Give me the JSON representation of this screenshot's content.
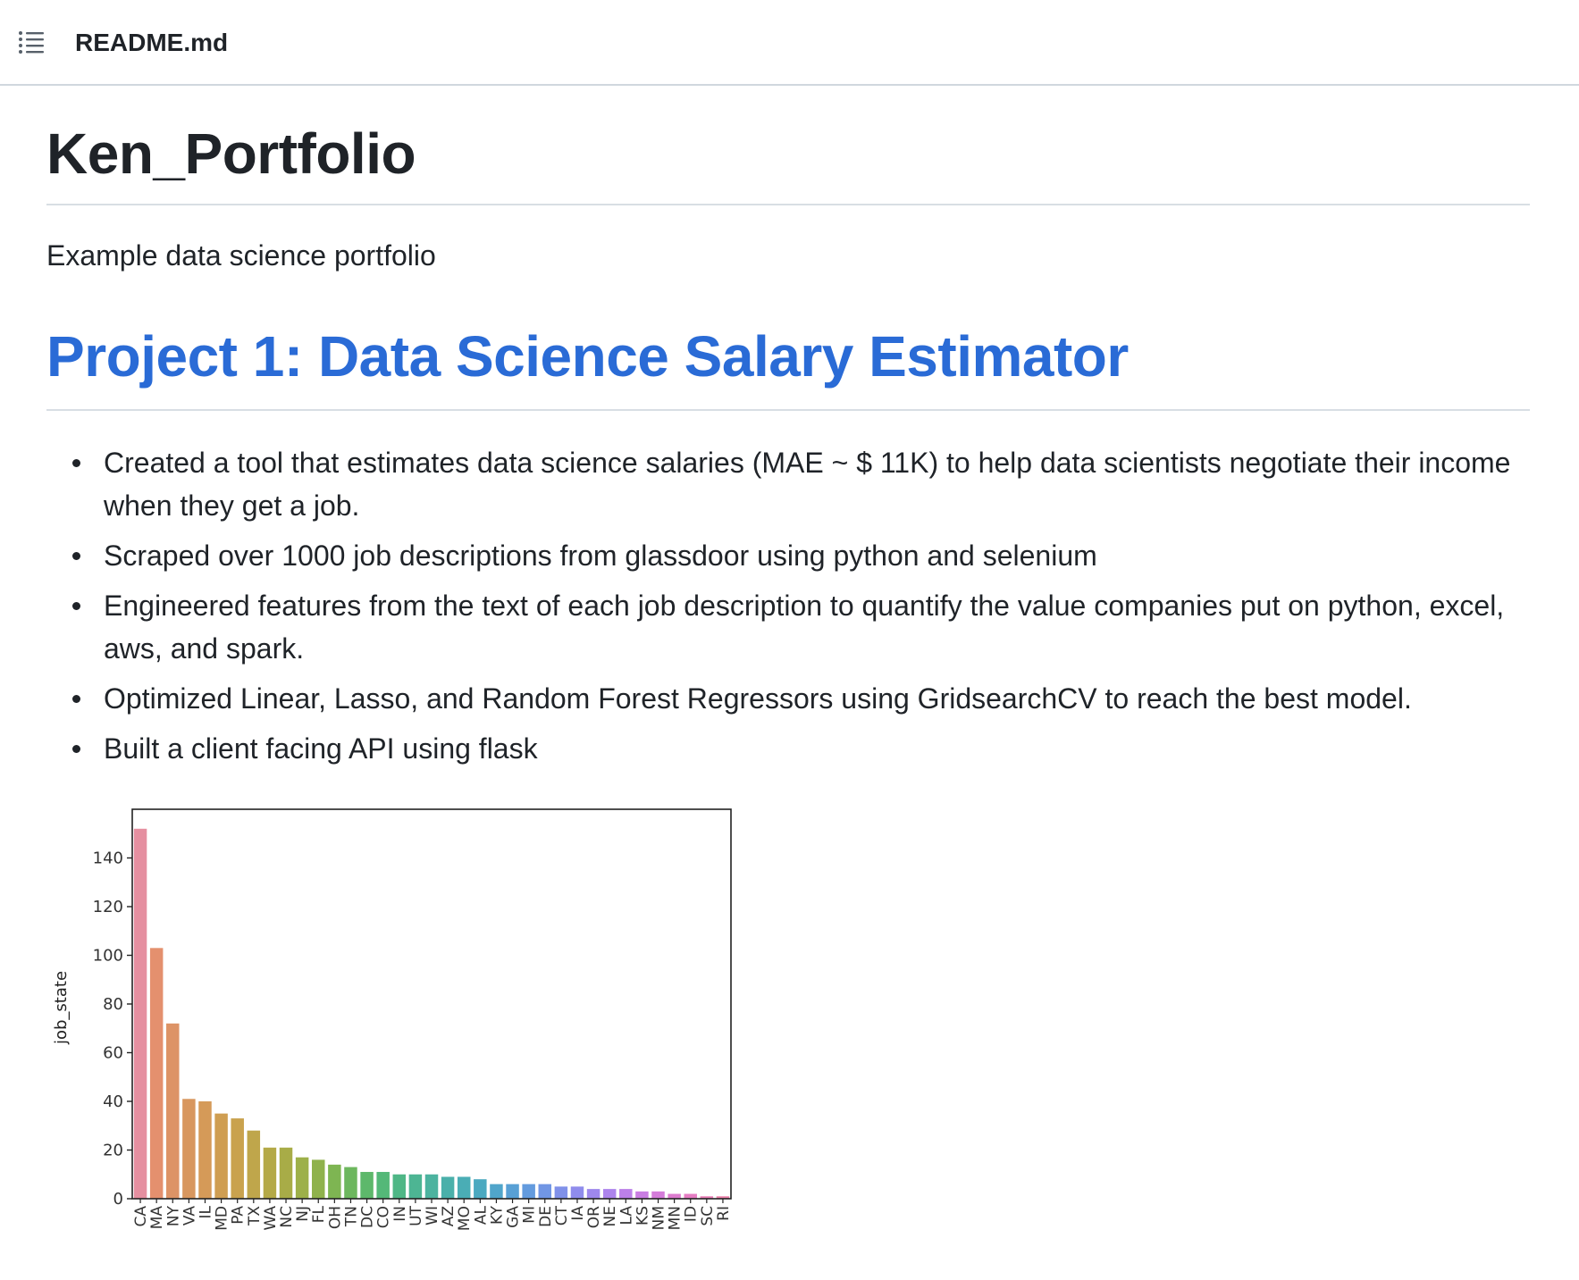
{
  "header": {
    "toc_icon": "list-icon",
    "file_name": "README.md"
  },
  "readme": {
    "title": "Ken_Portfolio",
    "intro": "Example data science portfolio",
    "project_title": "Project 1: Data Science Salary Estimator",
    "bullets": [
      "Created a tool that estimates data science salaries (MAE ~ $ 11K) to help data scientists negotiate their income when they get a job.",
      "Scraped over 1000 job descriptions from glassdoor using python and selenium",
      "Engineered features from the text of each job description to quantify the value companies put on python, excel, aws, and spark.",
      "Optimized Linear, Lasso, and Random Forest Regressors using GridsearchCV to reach the best model.",
      "Built a client facing API using flask"
    ]
  },
  "colors": {
    "link": "#2a6bd6",
    "text": "#1f2328",
    "divider": "#d8dee4"
  },
  "chart_data": {
    "type": "bar",
    "ylabel": "job_state",
    "xlabel": "",
    "ylim": [
      0,
      160
    ],
    "yticks": [
      0,
      20,
      40,
      60,
      80,
      100,
      120,
      140
    ],
    "categories": [
      "CA",
      "MA",
      "NY",
      "VA",
      "IL",
      "MD",
      "PA",
      "TX",
      "WA",
      "NC",
      "NJ",
      "FL",
      "OH",
      "TN",
      "DC",
      "CO",
      "IN",
      "UT",
      "WI",
      "AZ",
      "MO",
      "AL",
      "KY",
      "GA",
      "MI",
      "DE",
      "CT",
      "IA",
      "OR",
      "NE",
      "LA",
      "KS",
      "NM",
      "MN",
      "ID",
      "SC",
      "RI"
    ],
    "values": [
      152,
      103,
      72,
      41,
      40,
      35,
      33,
      28,
      21,
      21,
      17,
      16,
      14,
      13,
      11,
      11,
      10,
      10,
      10,
      9,
      9,
      8,
      6,
      6,
      6,
      6,
      5,
      5,
      4,
      4,
      4,
      3,
      3,
      2,
      2,
      1,
      1
    ],
    "colors": [
      "#e58fa0",
      "#e4906e",
      "#dd9366",
      "#d8975f",
      "#d59a58",
      "#cf9e52",
      "#c9a24e",
      "#bfa64b",
      "#b4a947",
      "#a8ac47",
      "#9db049",
      "#8fb24c",
      "#7eb552",
      "#6db75e",
      "#5db86b",
      "#54b878",
      "#4fb786",
      "#4db593",
      "#4cb39f",
      "#4ab0aa",
      "#4aadb5",
      "#4ba9c0",
      "#50a5cb",
      "#58a0d5",
      "#639bde",
      "#7196e4",
      "#8091e9",
      "#8f8cec",
      "#9e88ed",
      "#ad84ec",
      "#bc80e8",
      "#c97de2",
      "#d47cd9",
      "#dd7ccf",
      "#e57dc3",
      "#e97fb6",
      "#ec82aa"
    ]
  }
}
